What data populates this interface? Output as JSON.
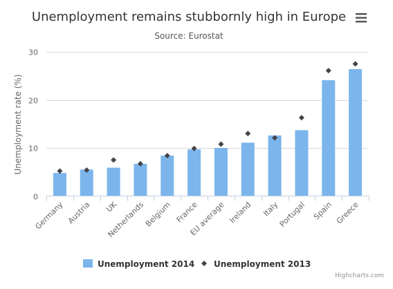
{
  "menu_icon": "hamburger-menu-icon",
  "credit": "Highcharts.com",
  "colors": {
    "bar": "#7cb5ec",
    "marker": "#434348",
    "grid": "#d8d8d8",
    "axis_text": "#666666",
    "title": "#333333"
  },
  "chart_data": {
    "type": "bar",
    "title": "Unemployment remains stubbornly high in Europe",
    "subtitle": "Source: Eurostat",
    "ylabel": "Unemployment rate (%)",
    "xlabel": "",
    "ylim": [
      0,
      30
    ],
    "yticks": [
      0,
      10,
      20,
      30
    ],
    "grid": true,
    "legend_position": "bottom-center",
    "categories": [
      "Germany",
      "Austria",
      "UK",
      "Netherlands",
      "Belgium",
      "France",
      "EU average",
      "Ireland",
      "Italy",
      "Portugal",
      "Spain",
      "Greece"
    ],
    "series": [
      {
        "name": "Unemployment 2014",
        "type": "bar",
        "marker": "square",
        "values": [
          4.8,
          5.5,
          5.9,
          6.7,
          8.4,
          9.7,
          10.0,
          11.1,
          12.6,
          13.7,
          24.1,
          26.4
        ]
      },
      {
        "name": "Unemployment 2013",
        "type": "scatter",
        "marker": "diamond",
        "values": [
          5.2,
          5.4,
          7.5,
          6.7,
          8.4,
          9.9,
          10.8,
          13.0,
          12.1,
          16.3,
          26.1,
          27.5
        ]
      }
    ]
  }
}
